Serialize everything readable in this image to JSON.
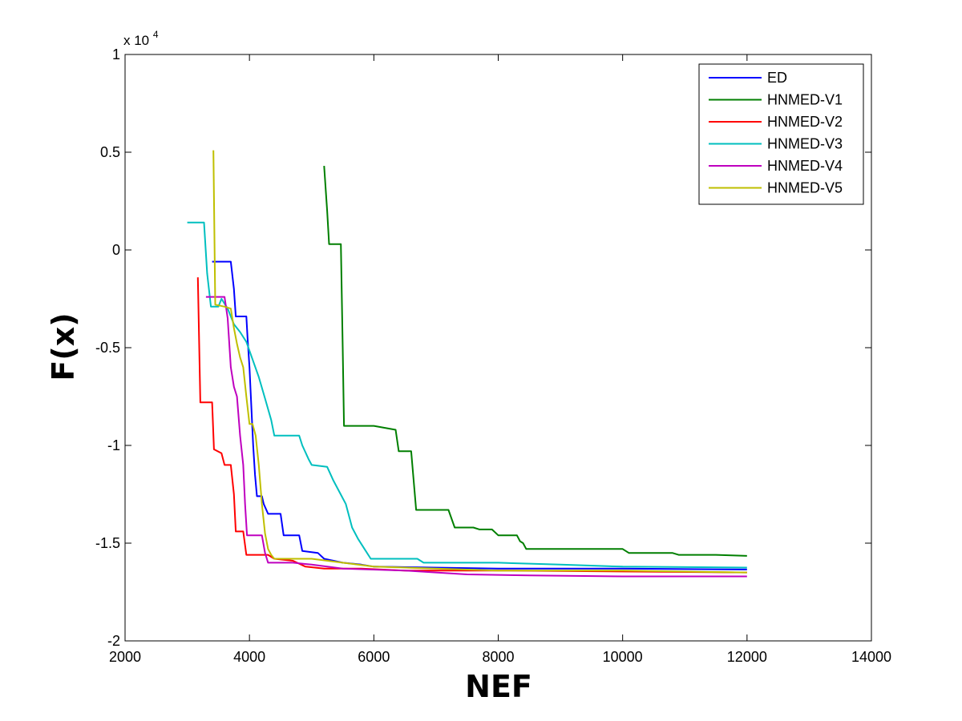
{
  "chart_data": {
    "type": "line",
    "title": "",
    "xlabel": "NEF",
    "ylabel": "F(x)",
    "y_multiplier": "x 10",
    "y_multiplier_exp": "4",
    "xlim": [
      2000,
      14000
    ],
    "ylim": [
      -2,
      1
    ],
    "x_ticks": [
      2000,
      4000,
      6000,
      8000,
      10000,
      12000,
      14000
    ],
    "x_tick_labels": [
      "2000",
      "4000",
      "6000",
      "8000",
      "10000",
      "12000",
      "14000"
    ],
    "y_ticks": [
      1,
      0.5,
      0,
      -0.5,
      -1,
      -1.5,
      -2
    ],
    "y_tick_labels": [
      "1",
      "0.5",
      "0",
      "-0.5",
      "-1",
      "-1.5",
      "-2"
    ],
    "grid": false,
    "legend_position": "top-right",
    "series": [
      {
        "name": "ED",
        "color": "#0000ff",
        "points": [
          [
            3400,
            -0.06
          ],
          [
            3700,
            -0.06
          ],
          [
            3750,
            -0.2
          ],
          [
            3780,
            -0.34
          ],
          [
            3950,
            -0.34
          ],
          [
            3970,
            -0.45
          ],
          [
            4000,
            -0.6
          ],
          [
            4030,
            -0.8
          ],
          [
            4060,
            -1.0
          ],
          [
            4090,
            -1.15
          ],
          [
            4120,
            -1.26
          ],
          [
            4200,
            -1.26
          ],
          [
            4230,
            -1.3
          ],
          [
            4300,
            -1.35
          ],
          [
            4500,
            -1.35
          ],
          [
            4550,
            -1.46
          ],
          [
            4800,
            -1.46
          ],
          [
            4850,
            -1.54
          ],
          [
            5100,
            -1.55
          ],
          [
            5200,
            -1.58
          ],
          [
            5500,
            -1.6
          ],
          [
            5800,
            -1.61
          ],
          [
            6000,
            -1.62
          ],
          [
            8000,
            -1.63
          ],
          [
            10000,
            -1.63
          ],
          [
            12000,
            -1.635
          ]
        ]
      },
      {
        "name": "HNMED-V1",
        "color": "#007f00",
        "points": [
          [
            5200,
            0.43
          ],
          [
            5250,
            0.2
          ],
          [
            5280,
            0.03
          ],
          [
            5470,
            0.03
          ],
          [
            5500,
            -0.5
          ],
          [
            5520,
            -0.9
          ],
          [
            6000,
            -0.9
          ],
          [
            6350,
            -0.92
          ],
          [
            6400,
            -1.03
          ],
          [
            6600,
            -1.03
          ],
          [
            6680,
            -1.33
          ],
          [
            7200,
            -1.33
          ],
          [
            7300,
            -1.42
          ],
          [
            7600,
            -1.42
          ],
          [
            7700,
            -1.43
          ],
          [
            7900,
            -1.43
          ],
          [
            8000,
            -1.46
          ],
          [
            8300,
            -1.46
          ],
          [
            8350,
            -1.49
          ],
          [
            8400,
            -1.5
          ],
          [
            8450,
            -1.53
          ],
          [
            9500,
            -1.53
          ],
          [
            10000,
            -1.53
          ],
          [
            10100,
            -1.55
          ],
          [
            10800,
            -1.55
          ],
          [
            10900,
            -1.56
          ],
          [
            11500,
            -1.56
          ],
          [
            12000,
            -1.565
          ]
        ]
      },
      {
        "name": "HNMED-V2",
        "color": "#ff0000",
        "points": [
          [
            3170,
            -0.14
          ],
          [
            3210,
            -0.78
          ],
          [
            3400,
            -0.78
          ],
          [
            3430,
            -1.02
          ],
          [
            3550,
            -1.04
          ],
          [
            3600,
            -1.1
          ],
          [
            3700,
            -1.1
          ],
          [
            3750,
            -1.25
          ],
          [
            3780,
            -1.44
          ],
          [
            3900,
            -1.44
          ],
          [
            3950,
            -1.56
          ],
          [
            4300,
            -1.56
          ],
          [
            4400,
            -1.58
          ],
          [
            4700,
            -1.59
          ],
          [
            4900,
            -1.62
          ],
          [
            5200,
            -1.63
          ],
          [
            5800,
            -1.63
          ],
          [
            6500,
            -1.64
          ],
          [
            8000,
            -1.64
          ],
          [
            10000,
            -1.645
          ],
          [
            12000,
            -1.65
          ]
        ]
      },
      {
        "name": "HNMED-V3",
        "color": "#00bfbf",
        "points": [
          [
            3000,
            0.14
          ],
          [
            3270,
            0.14
          ],
          [
            3320,
            -0.12
          ],
          [
            3380,
            -0.29
          ],
          [
            3500,
            -0.29
          ],
          [
            3550,
            -0.25
          ],
          [
            3650,
            -0.3
          ],
          [
            3750,
            -0.38
          ],
          [
            3850,
            -0.42
          ],
          [
            3950,
            -0.47
          ],
          [
            4050,
            -0.56
          ],
          [
            4150,
            -0.65
          ],
          [
            4250,
            -0.76
          ],
          [
            4350,
            -0.87
          ],
          [
            4400,
            -0.95
          ],
          [
            4800,
            -0.95
          ],
          [
            4850,
            -1.0
          ],
          [
            4950,
            -1.07
          ],
          [
            5000,
            -1.1
          ],
          [
            5250,
            -1.11
          ],
          [
            5350,
            -1.18
          ],
          [
            5450,
            -1.24
          ],
          [
            5550,
            -1.3
          ],
          [
            5650,
            -1.42
          ],
          [
            5750,
            -1.48
          ],
          [
            5850,
            -1.53
          ],
          [
            5950,
            -1.58
          ],
          [
            6700,
            -1.58
          ],
          [
            6800,
            -1.6
          ],
          [
            8000,
            -1.6
          ],
          [
            9000,
            -1.61
          ],
          [
            10000,
            -1.62
          ],
          [
            12000,
            -1.625
          ]
        ]
      },
      {
        "name": "HNMED-V4",
        "color": "#bf00bf",
        "points": [
          [
            3300,
            -0.24
          ],
          [
            3600,
            -0.24
          ],
          [
            3650,
            -0.35
          ],
          [
            3700,
            -0.6
          ],
          [
            3750,
            -0.7
          ],
          [
            3800,
            -0.75
          ],
          [
            3850,
            -0.95
          ],
          [
            3900,
            -1.1
          ],
          [
            3930,
            -1.3
          ],
          [
            3960,
            -1.46
          ],
          [
            4200,
            -1.46
          ],
          [
            4250,
            -1.55
          ],
          [
            4300,
            -1.6
          ],
          [
            4700,
            -1.6
          ],
          [
            5000,
            -1.61
          ],
          [
            5500,
            -1.63
          ],
          [
            6500,
            -1.64
          ],
          [
            7000,
            -1.65
          ],
          [
            7500,
            -1.66
          ],
          [
            8500,
            -1.665
          ],
          [
            10000,
            -1.67
          ],
          [
            12000,
            -1.67
          ]
        ]
      },
      {
        "name": "HNMED-V5",
        "color": "#bfbf00",
        "points": [
          [
            3420,
            0.51
          ],
          [
            3450,
            -0.28
          ],
          [
            3600,
            -0.29
          ],
          [
            3700,
            -0.3
          ],
          [
            3750,
            -0.4
          ],
          [
            3800,
            -0.48
          ],
          [
            3850,
            -0.55
          ],
          [
            3900,
            -0.6
          ],
          [
            3950,
            -0.75
          ],
          [
            4000,
            -0.89
          ],
          [
            4050,
            -0.89
          ],
          [
            4100,
            -0.95
          ],
          [
            4150,
            -1.1
          ],
          [
            4200,
            -1.3
          ],
          [
            4250,
            -1.45
          ],
          [
            4300,
            -1.53
          ],
          [
            4350,
            -1.56
          ],
          [
            4400,
            -1.58
          ],
          [
            5000,
            -1.58
          ],
          [
            5500,
            -1.6
          ],
          [
            6000,
            -1.62
          ],
          [
            7000,
            -1.63
          ],
          [
            8000,
            -1.64
          ],
          [
            10000,
            -1.64
          ],
          [
            12000,
            -1.65
          ]
        ]
      }
    ]
  }
}
